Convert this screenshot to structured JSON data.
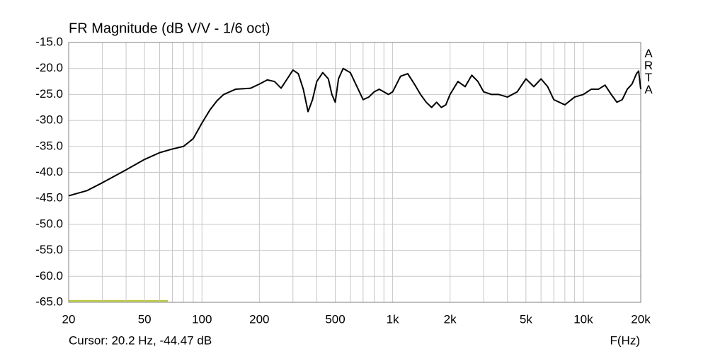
{
  "chart_data": {
    "type": "line",
    "title": "FR Magnitude (dB V/V - 1/6 oct)",
    "cursor": "Cursor: 20.2 Hz, -44.47 dB",
    "watermark": "ARTA",
    "x_label": "F(Hz)",
    "x_scale": "log",
    "grid": true,
    "xlim": [
      20,
      20000
    ],
    "ylim": [
      -65,
      -15
    ],
    "xticks": [
      20,
      50,
      100,
      200,
      500,
      {
        "value": 1000,
        "label": "1k"
      },
      {
        "value": 2000,
        "label": "2k"
      },
      {
        "value": 5000,
        "label": "5k"
      },
      {
        "value": 10000,
        "label": "10k"
      },
      {
        "value": 20000,
        "label": "20k"
      }
    ],
    "xgrid": [
      30,
      40,
      60,
      70,
      80,
      90,
      300,
      400,
      600,
      700,
      800,
      900,
      3000,
      4000,
      6000,
      7000,
      8000,
      9000
    ],
    "yticks": [
      {
        "value": -15,
        "label": "-15.0"
      },
      {
        "value": -20,
        "label": "-20.0"
      },
      {
        "value": -25,
        "label": "-25.0"
      },
      {
        "value": -30,
        "label": "-30.0"
      },
      {
        "value": -35,
        "label": "-35.0"
      },
      {
        "value": -40,
        "label": "-40.0"
      },
      {
        "value": -45,
        "label": "-45.0"
      },
      {
        "value": -50,
        "label": "-50.0"
      },
      {
        "value": -55,
        "label": "-55.0"
      },
      {
        "value": -60,
        "label": "-60.0"
      },
      {
        "value": -65,
        "label": "-65.0"
      }
    ],
    "x": [
      20,
      25,
      30,
      40,
      50,
      60,
      70,
      80,
      90,
      100,
      110,
      120,
      130,
      150,
      180,
      200,
      220,
      240,
      260,
      280,
      300,
      320,
      340,
      360,
      380,
      400,
      430,
      460,
      480,
      500,
      520,
      550,
      600,
      650,
      700,
      750,
      800,
      850,
      900,
      950,
      1000,
      1100,
      1200,
      1300,
      1400,
      1500,
      1600,
      1700,
      1800,
      1900,
      2000,
      2200,
      2400,
      2600,
      2800,
      3000,
      3300,
      3600,
      4000,
      4500,
      5000,
      5500,
      6000,
      6500,
      7000,
      8000,
      9000,
      10000,
      11000,
      12000,
      13000,
      14000,
      15000,
      16000,
      17000,
      18000,
      19000,
      19500,
      20000
    ],
    "series": [
      {
        "name": "FR",
        "color": "#000000",
        "values": [
          -44.5,
          -43.5,
          -42,
          -39.5,
          -37.5,
          -36.2,
          -35.5,
          -35,
          -33.5,
          -30.5,
          -28,
          -26.2,
          -25,
          -24,
          -23.8,
          -23,
          -22.2,
          -22.5,
          -23.8,
          -22,
          -20.3,
          -21,
          -24,
          -28.3,
          -26,
          -22.5,
          -20.8,
          -22,
          -25,
          -26.5,
          -22,
          -20,
          -20.8,
          -23.5,
          -26,
          -25.5,
          -24.5,
          -24,
          -24.5,
          -25,
          -24.5,
          -21.5,
          -21,
          -23,
          -25,
          -26.5,
          -27.5,
          -26.5,
          -27.5,
          -27,
          -25,
          -22.5,
          -23.5,
          -21.3,
          -22.5,
          -24.5,
          -25,
          -25,
          -25.5,
          -24.5,
          -22,
          -23.5,
          -22,
          -23.5,
          -26,
          -27,
          -25.5,
          -25,
          -24,
          -24,
          -23.2,
          -25,
          -26.5,
          -26,
          -24,
          -23,
          -21,
          -20.5,
          -24
        ]
      }
    ]
  }
}
